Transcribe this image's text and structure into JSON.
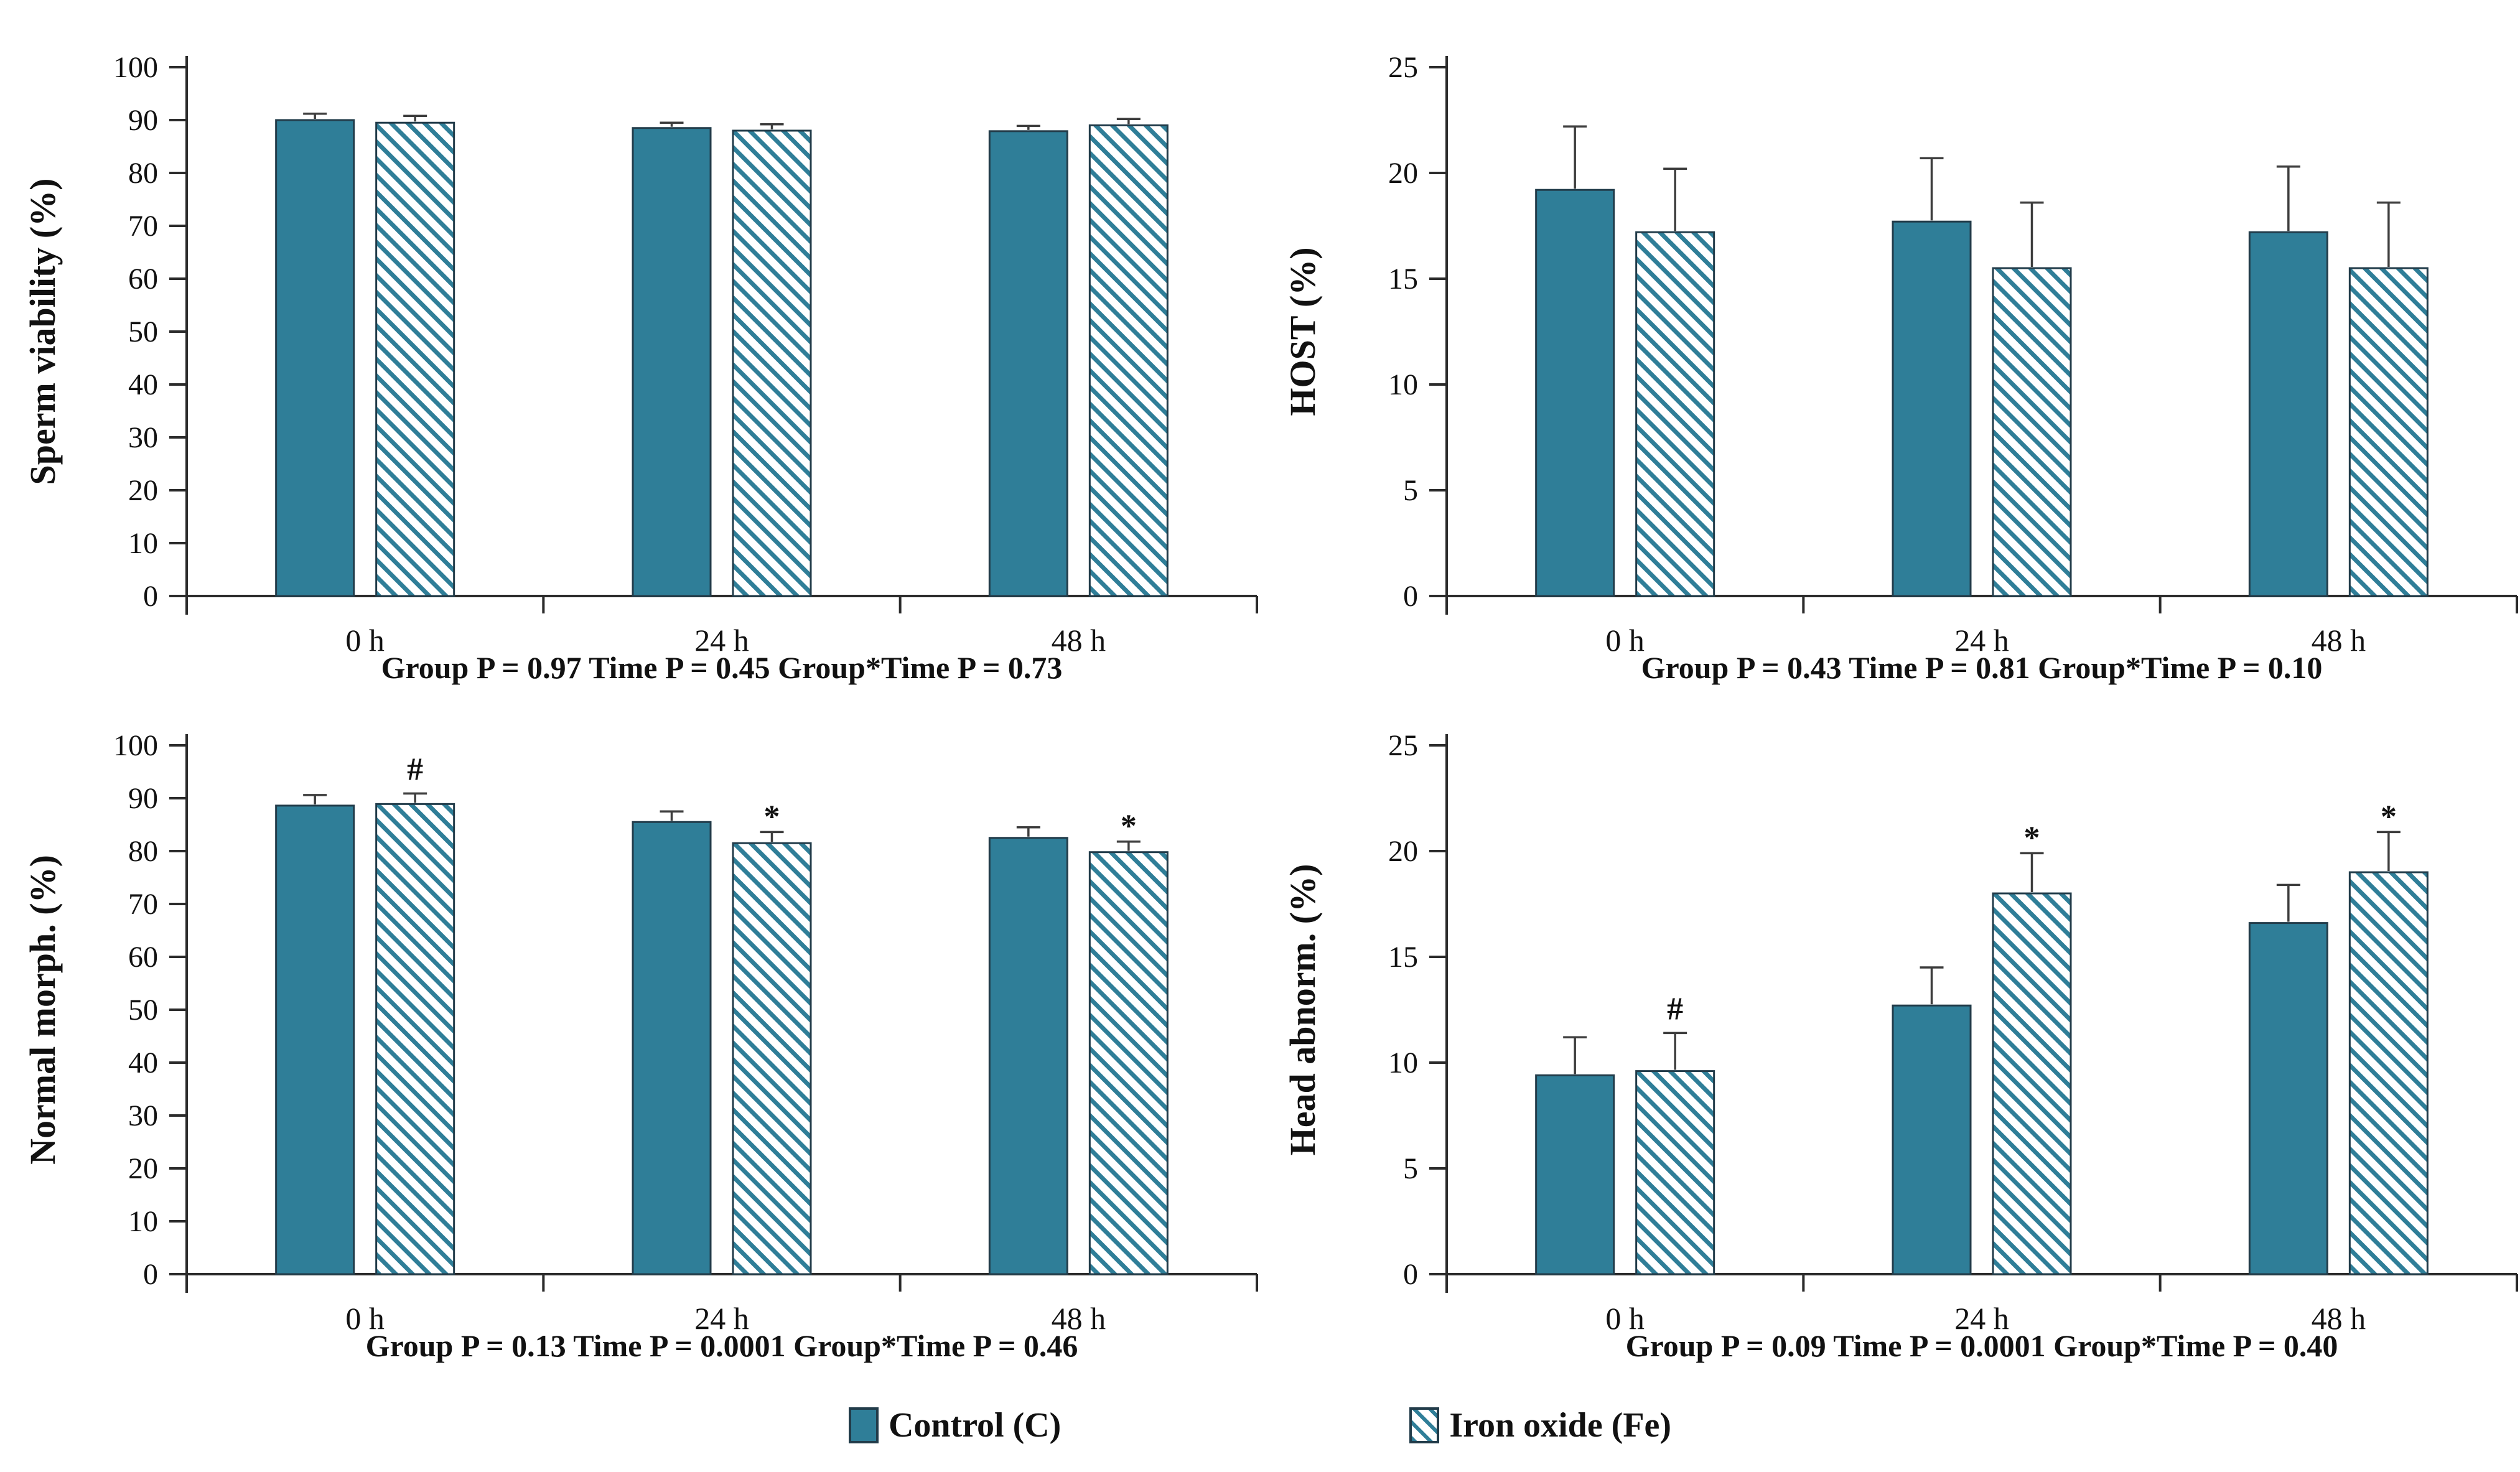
{
  "page": {
    "background": "#ffffff"
  },
  "colors": {
    "bar_fill": "#2F7E98",
    "bar_outline": "#223C4A",
    "error_bar": "#3d3d3d",
    "axis": "#2b2b2b",
    "text": "#111111"
  },
  "legend": {
    "items": [
      {
        "label": "Control (C)",
        "style": "solid"
      },
      {
        "label": "Iron oxide (Fe)",
        "style": "hatched"
      }
    ]
  },
  "chart_data": [
    {
      "type": "bar",
      "title": "",
      "ylabel": "Sperm viability (%)",
      "xlabel": "",
      "ylim": [
        0,
        100
      ],
      "ytick_step": 10,
      "grid": false,
      "legend_position": "shared-bottom",
      "categories": [
        "0 h",
        "24 h",
        "48 h"
      ],
      "series": [
        {
          "name": "Control (C)",
          "style": "solid",
          "values": [
            90.0,
            88.5,
            87.9
          ],
          "errors": [
            1.2,
            1.0,
            1.0
          ],
          "markers": [
            "",
            "",
            ""
          ]
        },
        {
          "name": "Iron oxide (Fe)",
          "style": "hatched",
          "values": [
            89.5,
            88.0,
            89.0
          ],
          "errors": [
            1.3,
            1.2,
            1.2
          ],
          "markers": [
            "",
            "",
            ""
          ]
        }
      ],
      "p_values": {
        "group": "0.97",
        "time": "0.45",
        "interaction": "0.73"
      },
      "caption": "Group P = 0.97 Time P = 0.45 Group*Time P = 0.73"
    },
    {
      "type": "bar",
      "title": "",
      "ylabel": "HOST (%)",
      "xlabel": "",
      "ylim": [
        0,
        25
      ],
      "ytick_step": 5,
      "grid": false,
      "legend_position": "shared-bottom",
      "categories": [
        "0 h",
        "24 h",
        "48 h"
      ],
      "series": [
        {
          "name": "Control (C)",
          "style": "solid",
          "values": [
            19.2,
            17.7,
            17.2
          ],
          "errors": [
            3.0,
            3.0,
            3.1
          ],
          "markers": [
            "",
            "",
            ""
          ]
        },
        {
          "name": "Iron oxide (Fe)",
          "style": "hatched",
          "values": [
            17.2,
            15.5,
            15.5
          ],
          "errors": [
            3.0,
            3.1,
            3.1
          ],
          "markers": [
            "",
            "",
            ""
          ]
        }
      ],
      "p_values": {
        "group": "0.43",
        "time": "0.81",
        "interaction": "0.10"
      },
      "caption": "Group P = 0.43 Time P = 0.81 Group*Time P = 0.10"
    },
    {
      "type": "bar",
      "title": "",
      "ylabel": "Normal morph. (%)",
      "xlabel": "",
      "ylim": [
        0,
        100
      ],
      "ytick_step": 10,
      "grid": false,
      "legend_position": "shared-bottom",
      "categories": [
        "0 h",
        "24 h",
        "48 h"
      ],
      "series": [
        {
          "name": "Control (C)",
          "style": "solid",
          "values": [
            88.6,
            85.5,
            82.5
          ],
          "errors": [
            2.0,
            2.0,
            2.0
          ],
          "markers": [
            "",
            "",
            ""
          ]
        },
        {
          "name": "Iron oxide (Fe)",
          "style": "hatched",
          "values": [
            88.9,
            81.5,
            79.8
          ],
          "errors": [
            2.0,
            2.1,
            2.0
          ],
          "markers": [
            "#",
            "*",
            "*"
          ]
        }
      ],
      "p_values": {
        "group": "0.13",
        "time": "0.0001",
        "interaction": "0.46"
      },
      "caption": "Group P = 0.13 Time P = 0.0001 Group*Time P = 0.46"
    },
    {
      "type": "bar",
      "title": "",
      "ylabel": "Head abnorm. (%)",
      "xlabel": "",
      "ylim": [
        0,
        25
      ],
      "ytick_step": 5,
      "grid": false,
      "legend_position": "shared-bottom",
      "categories": [
        "0 h",
        "24 h",
        "48 h"
      ],
      "series": [
        {
          "name": "Control (C)",
          "style": "solid",
          "values": [
            9.4,
            12.7,
            16.6
          ],
          "errors": [
            1.8,
            1.8,
            1.8
          ],
          "markers": [
            "",
            "",
            ""
          ]
        },
        {
          "name": "Iron oxide (Fe)",
          "style": "hatched",
          "values": [
            9.6,
            18.0,
            19.0
          ],
          "errors": [
            1.8,
            1.9,
            1.9
          ],
          "markers": [
            "#",
            "*",
            "*"
          ]
        }
      ],
      "p_values": {
        "group": "0.09",
        "time": "0.0001",
        "interaction": "0.40"
      },
      "caption": "Group P = 0.09 Time P = 0.0001 Group*Time P = 0.40"
    }
  ]
}
